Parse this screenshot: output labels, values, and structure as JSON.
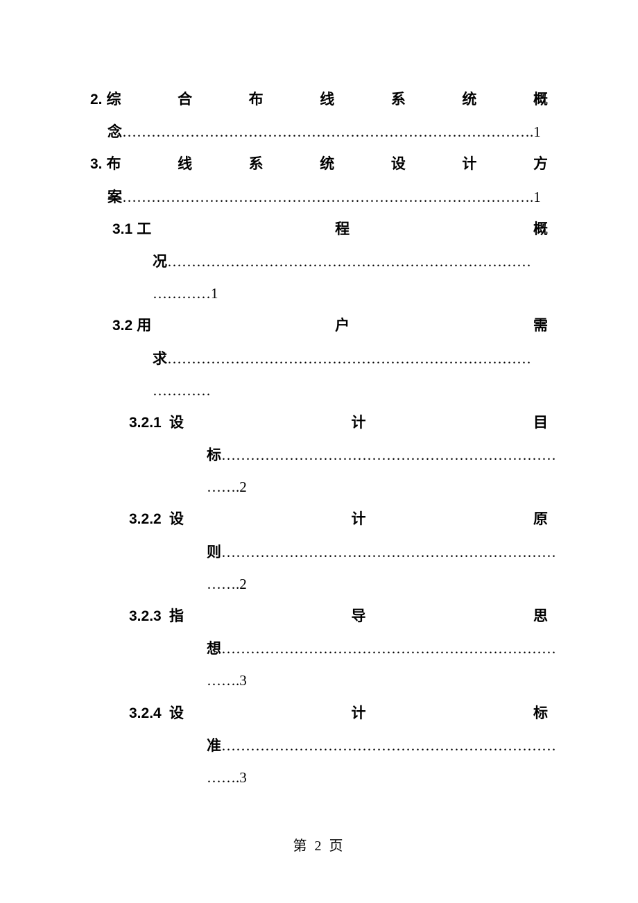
{
  "toc": {
    "item2": {
      "num": "2.",
      "chars": [
        "综",
        "合",
        "布",
        "线",
        "系",
        "统",
        "概"
      ],
      "wrap_char": "念",
      "dots": "………………………………………………………………………….",
      "page": "1"
    },
    "item3": {
      "num": "3.",
      "chars": [
        "布",
        "线",
        "系",
        "统",
        "设",
        "计",
        "方"
      ],
      "wrap_char": "案",
      "dots": "………………………………………………………………………….",
      "page": "1"
    },
    "item3_1": {
      "num": "3.1",
      "chars": [
        "工",
        "程",
        "概"
      ],
      "wrap_char": "况",
      "dots1": "…………………………………………………………………",
      "dots2": "…………",
      "page": "1"
    },
    "item3_2": {
      "num": "3.2",
      "chars": [
        "用",
        "户",
        "需"
      ],
      "wrap_char": "求",
      "dots1": "…………………………………………………………………",
      "dots2": "…………",
      "page": ""
    },
    "item3_2_1": {
      "num": "3.2.1",
      "chars": [
        "设",
        "计",
        "目"
      ],
      "wrap_char": "标",
      "dots1": "……………………………………………………………",
      "dots2": "…….",
      "page": "2"
    },
    "item3_2_2": {
      "num": "3.2.2",
      "chars": [
        "设",
        "计",
        "原"
      ],
      "wrap_char": "则",
      "dots1": "……………………………………………………………",
      "dots2": "…….",
      "page": "2"
    },
    "item3_2_3": {
      "num": "3.2.3",
      "chars": [
        "指",
        "导",
        "思"
      ],
      "wrap_char": "想",
      "dots1": "……………………………………………………………",
      "dots2": "…….",
      "page": "3"
    },
    "item3_2_4": {
      "num": "3.2.4",
      "chars": [
        "设",
        "计",
        "标"
      ],
      "wrap_char": "准",
      "dots1": "……………………………………………………………",
      "dots2": "…….",
      "page": "3"
    }
  },
  "footer": {
    "page_label": "第 2 页"
  },
  "style": {
    "background": "#ffffff",
    "text_color": "#000000",
    "font_family": "SimSun",
    "font_size_body": 21,
    "font_size_footer": 20,
    "font_weight_title": "bold",
    "line_height": 2.2
  }
}
